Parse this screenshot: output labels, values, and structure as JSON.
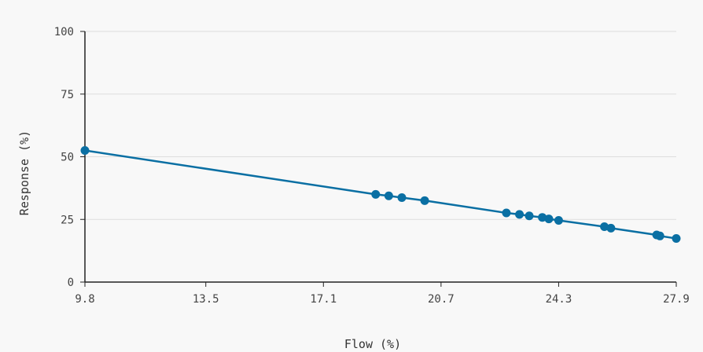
{
  "chart_data": {
    "type": "line",
    "xlabel": "Flow (%)",
    "ylabel": "Response (%)",
    "xlim": [
      9.8,
      27.9
    ],
    "ylim": [
      0,
      100
    ],
    "x_ticks": [
      "9.8",
      "13.5",
      "17.1",
      "20.7",
      "24.3",
      "27.9"
    ],
    "y_ticks": [
      "0",
      "25",
      "50",
      "75",
      "100"
    ],
    "grid": "horizontal",
    "colors": {
      "series": "#0a6fa3",
      "grid": "#dddddd",
      "axis": "#222222"
    },
    "series": [
      {
        "points": [
          [
            9.8,
            52.5
          ],
          [
            18.7,
            35.0
          ],
          [
            19.1,
            34.4
          ],
          [
            19.5,
            33.7
          ],
          [
            20.2,
            32.5
          ],
          [
            22.7,
            27.6
          ],
          [
            23.1,
            27.0
          ],
          [
            23.4,
            26.4
          ],
          [
            23.8,
            25.8
          ],
          [
            24.0,
            25.2
          ],
          [
            24.3,
            24.6
          ],
          [
            25.7,
            22.1
          ],
          [
            25.9,
            21.5
          ],
          [
            27.3,
            18.8
          ],
          [
            27.4,
            18.4
          ],
          [
            27.9,
            17.4
          ]
        ]
      }
    ]
  }
}
